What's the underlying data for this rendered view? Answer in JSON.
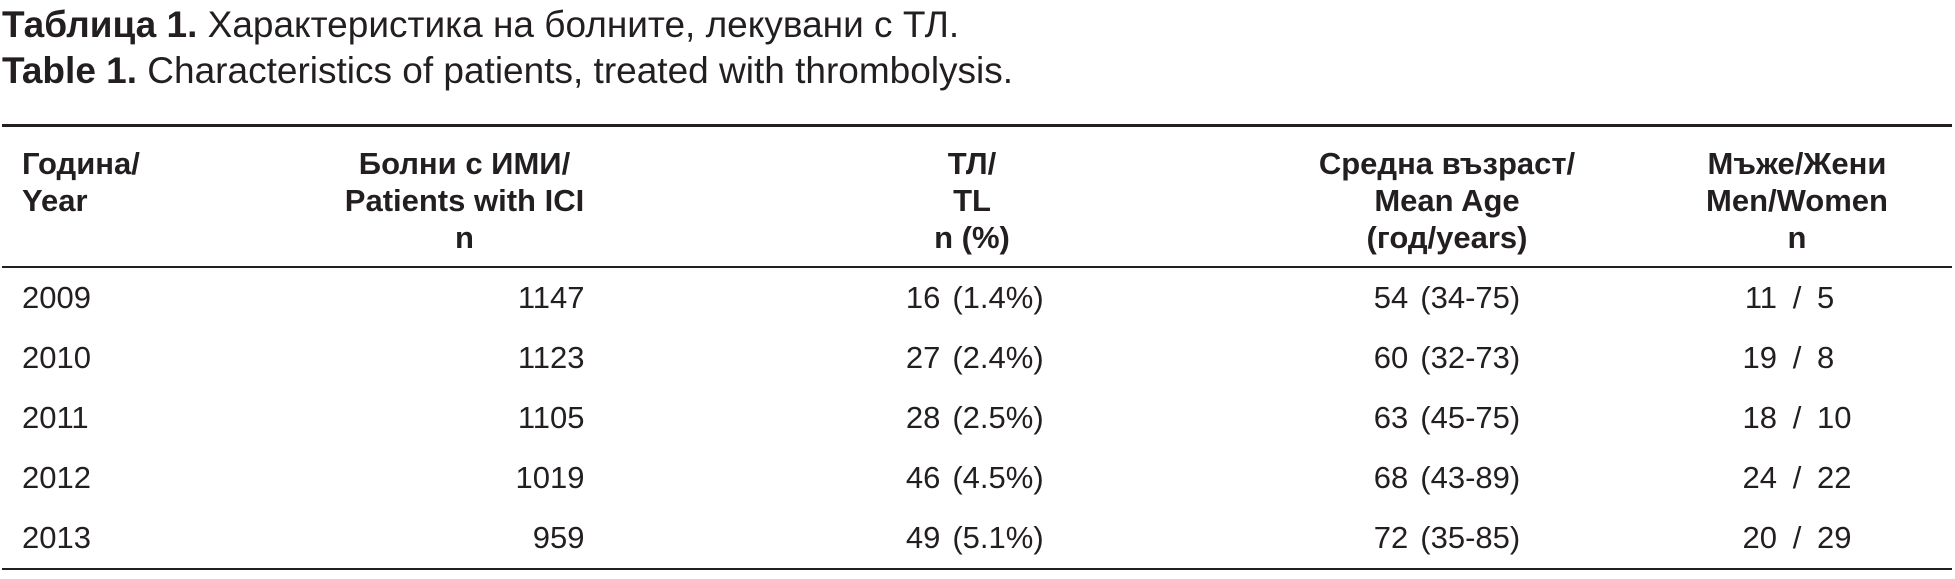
{
  "caption_bg": {
    "label": "Таблица 1.",
    "text": " Характеристика на болните, лекувани с ТЛ."
  },
  "caption_en": {
    "label": "Table 1.",
    "text": " Characteristics of patients, treated with thrombolysis."
  },
  "headers": {
    "year": [
      "Година/",
      "Year"
    ],
    "patients": [
      "Болни с ИМИ/",
      "Patients with ICI",
      "n"
    ],
    "tl": [
      "ТЛ/",
      "TL",
      "n (%)"
    ],
    "age": [
      "Средна възраст/",
      "Mean Age",
      "(год/years)"
    ],
    "mw": [
      "Мъже/Жени",
      "Men/Women",
      "n"
    ]
  },
  "rows": [
    {
      "year": "2009",
      "patients": "1147",
      "tl_n": "16",
      "tl_pct": "(1.4%)",
      "age_mean": "54",
      "age_range": "(34-75)",
      "men": "11",
      "women": "5"
    },
    {
      "year": "2010",
      "patients": "1123",
      "tl_n": "27",
      "tl_pct": "(2.4%)",
      "age_mean": "60",
      "age_range": "(32-73)",
      "men": "19",
      "women": "8"
    },
    {
      "year": "2011",
      "patients": "1105",
      "tl_n": "28",
      "tl_pct": "(2.5%)",
      "age_mean": "63",
      "age_range": "(45-75)",
      "men": "18",
      "women": "10"
    },
    {
      "year": "2012",
      "patients": "1019",
      "tl_n": "46",
      "tl_pct": "(4.5%)",
      "age_mean": "68",
      "age_range": "(43-89)",
      "men": "24",
      "women": "22"
    },
    {
      "year": "2013",
      "patients": "959",
      "tl_n": "49",
      "tl_pct": "(5.1%)",
      "age_mean": "72",
      "age_range": "(35-85)",
      "men": "20",
      "women": "29"
    }
  ],
  "slash": "/"
}
